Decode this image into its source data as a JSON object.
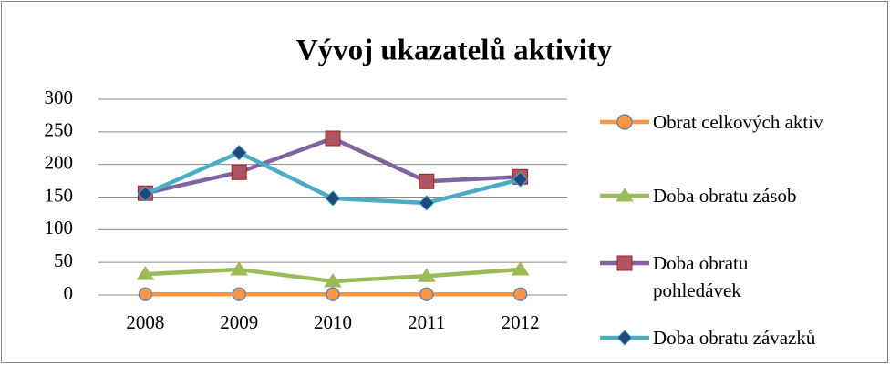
{
  "chart_data": {
    "type": "line",
    "title": "Vývoj ukazatelů aktivity",
    "categories": [
      "2008",
      "2009",
      "2010",
      "2011",
      "2012"
    ],
    "series": [
      {
        "name": "Obrat celkových aktiv",
        "color": "#f79646",
        "marker": "circle",
        "marker_color": "#f79646",
        "values": [
          1,
          1,
          1,
          1,
          1
        ]
      },
      {
        "name": "Doba obratu zásob",
        "color": "#9bbb59",
        "marker": "triangle",
        "marker_color": "#9bbb59",
        "values": [
          32,
          39,
          21,
          29,
          39
        ]
      },
      {
        "name": "Doba obratu pohledávek",
        "color": "#8064a2",
        "marker": "square",
        "marker_color": "#c0504d",
        "values": [
          156,
          188,
          240,
          174,
          181
        ]
      },
      {
        "name": "Doba obratu závazků",
        "color": "#4bacc6",
        "marker": "diamond",
        "marker_color": "#1f497d",
        "values": [
          155,
          218,
          148,
          141,
          177
        ]
      }
    ],
    "ylim": [
      0,
      300
    ],
    "yticks": [
      0,
      50,
      100,
      150,
      200,
      250,
      300
    ],
    "grid": true,
    "legend": "right"
  }
}
